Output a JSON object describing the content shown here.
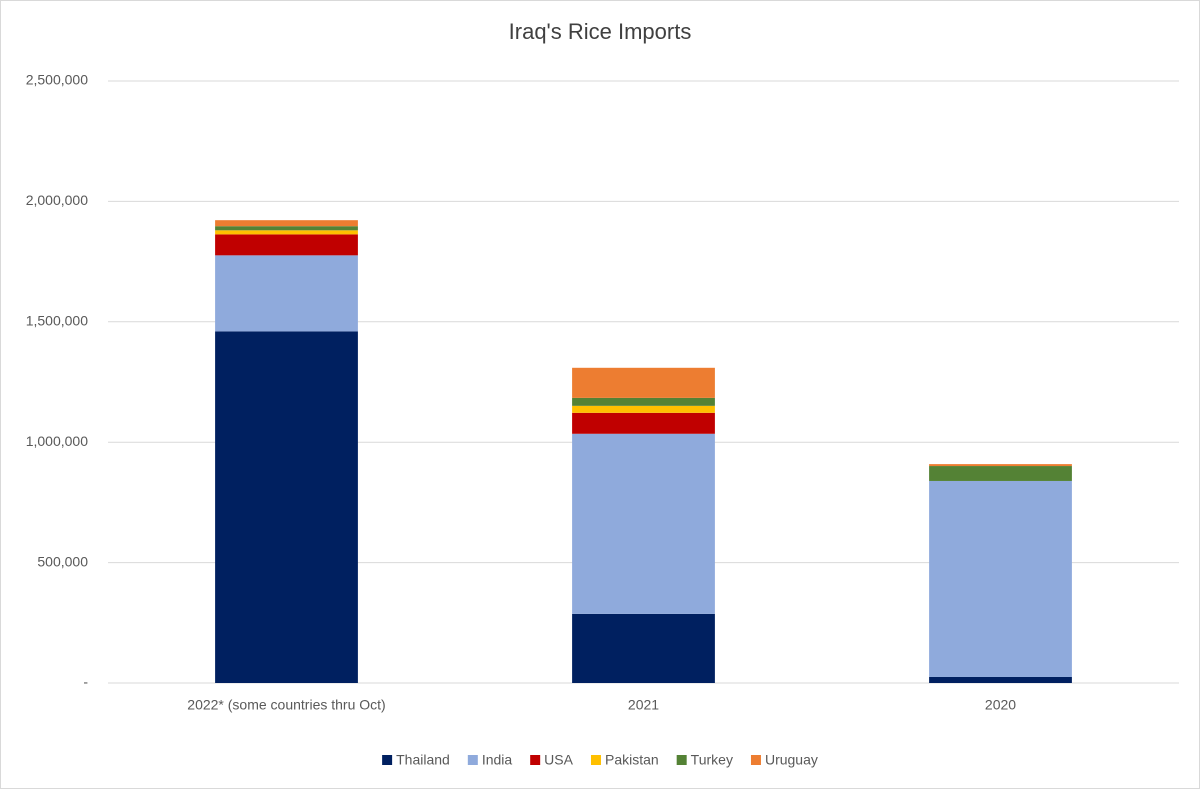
{
  "chart_data": {
    "type": "stacked_bar",
    "title": "Iraq's Rice Imports",
    "categories": [
      "2022* (some countries thru Oct)",
      "2021",
      "2020"
    ],
    "series": [
      {
        "name": "Thailand",
        "color": "#002060",
        "values": [
          1460000,
          287000,
          25000
        ]
      },
      {
        "name": "India",
        "color": "#8faadc",
        "values": [
          316000,
          748000,
          814000
        ]
      },
      {
        "name": "USA",
        "color": "#c00000",
        "values": [
          87000,
          87000,
          0
        ]
      },
      {
        "name": "Pakistan",
        "color": "#ffc000",
        "values": [
          17000,
          29000,
          0
        ]
      },
      {
        "name": "Turkey",
        "color": "#548235",
        "values": [
          17000,
          33000,
          62000
        ]
      },
      {
        "name": "Uruguay",
        "color": "#ed7d31",
        "values": [
          25000,
          125000,
          8000
        ]
      }
    ],
    "ylim": [
      0,
      2500000
    ],
    "yticks": [
      {
        "value": 0,
        "label": "-"
      },
      {
        "value": 500000,
        "label": "500,000"
      },
      {
        "value": 1000000,
        "label": "1,000,000"
      },
      {
        "value": 1500000,
        "label": "1,500,000"
      },
      {
        "value": 2000000,
        "label": "2,000,000"
      },
      {
        "value": 2500000,
        "label": "2,500,000"
      }
    ],
    "grid": true,
    "legend": "bottom"
  }
}
